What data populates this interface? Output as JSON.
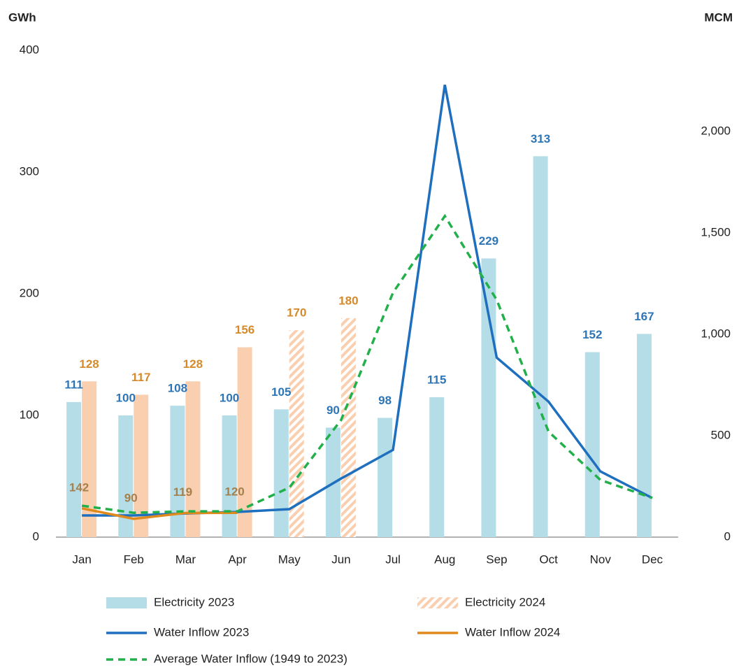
{
  "chart_data": {
    "type": "bar",
    "y_label": "GWh",
    "y2_label": "MCM",
    "categories": [
      "Jan",
      "Feb",
      "Mar",
      "Apr",
      "May",
      "Jun",
      "Jul",
      "Aug",
      "Sep",
      "Oct",
      "Nov",
      "Dec"
    ],
    "ylim": [
      0,
      400
    ],
    "yticks": [
      0,
      100,
      200,
      300,
      400
    ],
    "y2lim": [
      0,
      2400
    ],
    "y2ticks": [
      0,
      500,
      {
        "value": 1000,
        "label": "1,000"
      },
      {
        "value": 1500,
        "label": "1,500"
      },
      {
        "value": 2000,
        "label": "2,000"
      }
    ],
    "grid": false,
    "legend": "bottom",
    "series": [
      {
        "name": "Electricity 2023",
        "type": "bar",
        "color": "#b4dde7",
        "data_labels": true,
        "label_color": "#2e75b6",
        "values": [
          111,
          100,
          108,
          100,
          105,
          90,
          98,
          115,
          229,
          313,
          152,
          167
        ]
      },
      {
        "name": "Electricity 2024",
        "type": "bar",
        "color": "#f9cfb0",
        "data_labels": true,
        "label_color": "#d58a2c",
        "hatched": [
          false,
          false,
          false,
          false,
          true,
          true,
          null,
          null,
          null,
          null,
          null,
          null
        ],
        "values": [
          128,
          117,
          128,
          156,
          170,
          180,
          null,
          null,
          null,
          null,
          null,
          null
        ]
      },
      {
        "name": "Water Inflow 2023",
        "type": "line",
        "axis": "y2",
        "color": "#1f6fbf",
        "values": [
          107,
          107,
          117,
          124,
          138,
          289,
          430,
          2230,
          885,
          668,
          324,
          193
        ]
      },
      {
        "name": "Water Inflow 2024",
        "type": "line",
        "axis": "y2",
        "color": "#e08a1e",
        "data_labels": true,
        "label_color": "#a5804c",
        "values": [
          142,
          90,
          119,
          120,
          null,
          null,
          null,
          null,
          null,
          null,
          null,
          null
        ]
      },
      {
        "name": "Average Water Inflow (1949 to 2023)",
        "type": "line",
        "axis": "y2",
        "color": "#22b04b",
        "dashed": true,
        "values": [
          155,
          120,
          127,
          127,
          244,
          578,
          1205,
          1583,
          1170,
          520,
          282,
          193
        ]
      }
    ]
  }
}
